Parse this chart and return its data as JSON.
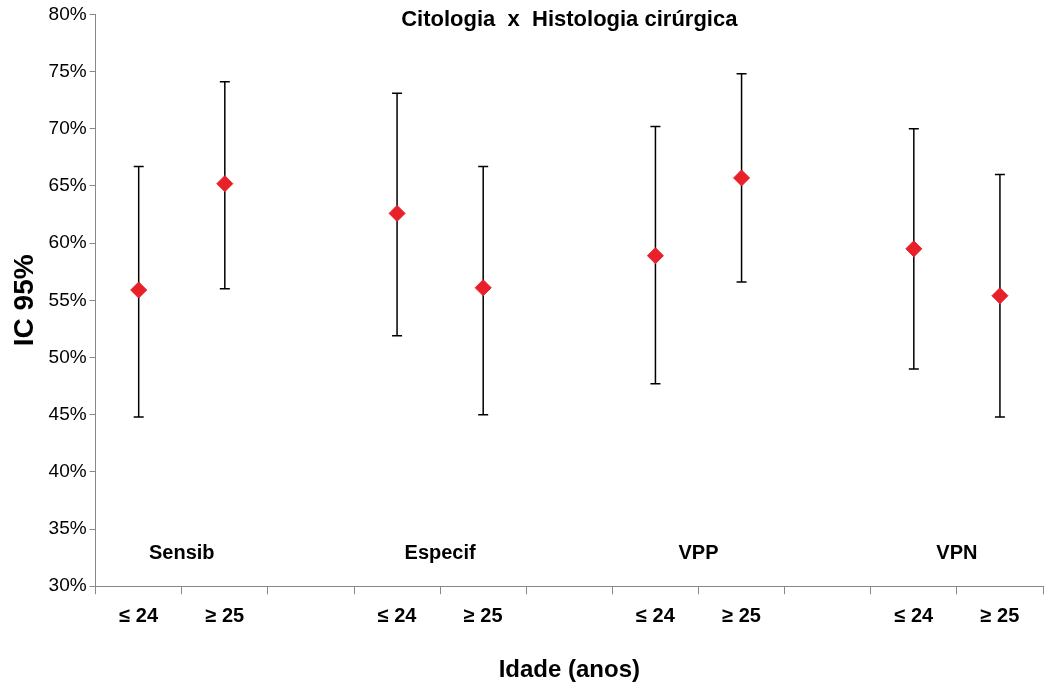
{
  "chart_data": {
    "type": "scatter",
    "title": "Citologia  x  Histologia cirúrgica",
    "xlabel": "Idade (anos)",
    "ylabel": "IC 95%",
    "categories": [
      "≤ 24",
      "≥ 25",
      null,
      "≤ 24",
      "≥ 25",
      null,
      "≤ 24",
      "≥ 25",
      null,
      "≤ 24",
      "≥ 25"
    ],
    "series": [
      {
        "color": "#e8202a",
        "values": [
          55.9,
          65.2,
          null,
          62.6,
          56.1,
          null,
          58.9,
          65.7,
          null,
          59.5,
          55.4
        ],
        "errors": [
          [
            44.8,
            66.7
          ],
          [
            56.0,
            74.1
          ],
          null,
          [
            51.9,
            73.1
          ],
          [
            45.0,
            66.7
          ],
          null,
          [
            47.7,
            70.2
          ],
          [
            56.6,
            74.8
          ],
          null,
          [
            49.0,
            70.0
          ],
          [
            44.8,
            66.0
          ]
        ]
      }
    ],
    "annotations": [
      "Sensib",
      "Especif",
      "VPP",
      "VPN"
    ],
    "ylim": [
      30,
      80
    ],
    "yticks": [
      {
        "value": 30,
        "label": "30%"
      },
      {
        "value": 35,
        "label": "35%"
      },
      {
        "value": 40,
        "label": "40%"
      },
      {
        "value": 45,
        "label": "45%"
      },
      {
        "value": 50,
        "label": "50%"
      },
      {
        "value": 55,
        "label": "55%"
      },
      {
        "value": 60,
        "label": "60%"
      },
      {
        "value": 65,
        "label": "65%"
      },
      {
        "value": 70,
        "label": "70%"
      },
      {
        "value": 75,
        "label": "75%"
      },
      {
        "value": 80,
        "label": "80%"
      }
    ],
    "grid": false,
    "legend": false,
    "marker": "diamond"
  }
}
